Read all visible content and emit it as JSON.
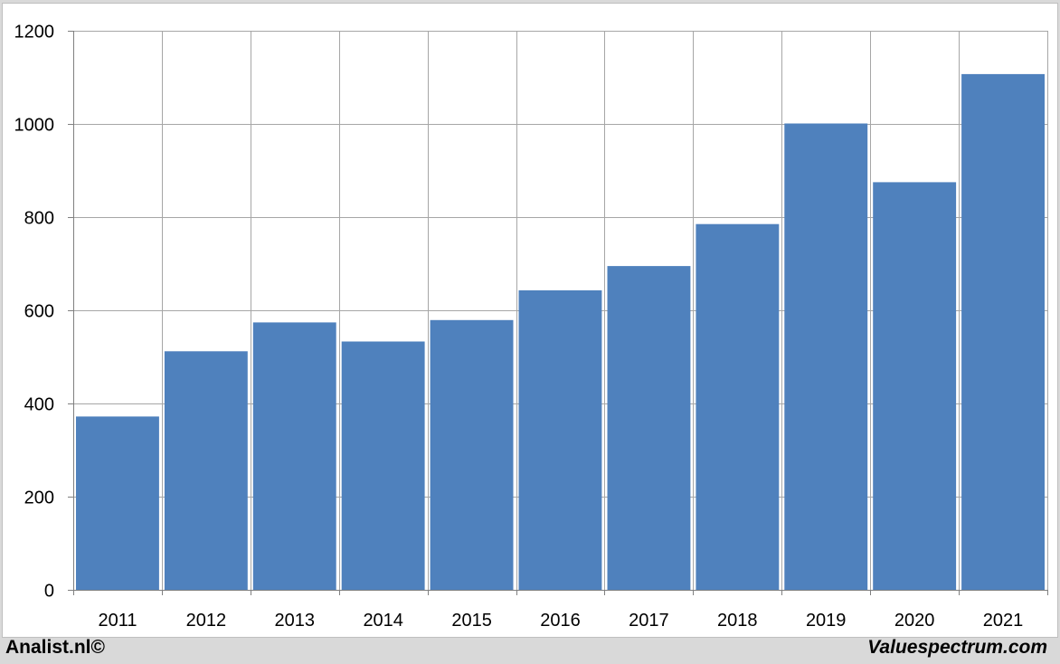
{
  "chart_data": {
    "type": "bar",
    "title": "",
    "xlabel": "",
    "ylabel": "",
    "categories": [
      "2011",
      "2012",
      "2013",
      "2014",
      "2015",
      "2016",
      "2017",
      "2018",
      "2019",
      "2020",
      "2021"
    ],
    "values": [
      372,
      512,
      574,
      533,
      579,
      643,
      695,
      785,
      1001,
      875,
      1107
    ],
    "ylim": [
      0,
      1200
    ],
    "yticks": [
      0,
      200,
      400,
      600,
      800,
      1000,
      1200
    ],
    "grid": true,
    "legend": "none",
    "bar_color": "#4f81bd",
    "grid_color": "#a6a6a6"
  },
  "footer": {
    "left": "Analist.nl©",
    "right": "Valuespectrum.com"
  }
}
